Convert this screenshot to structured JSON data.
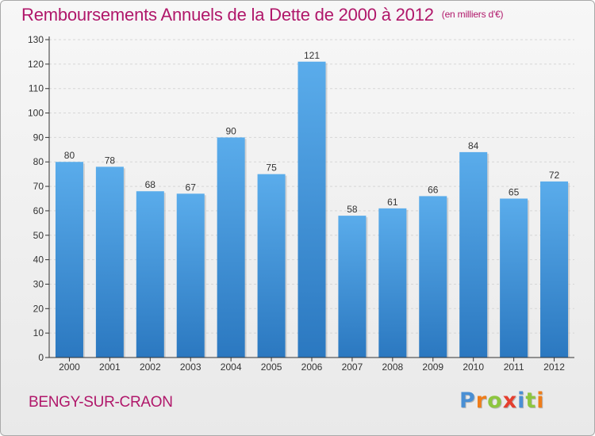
{
  "title": "Remboursements Annuels de la Dette de 2000 à 2012",
  "title_unit": "(en milliers d'€)",
  "commune": "BENGY-SUR-CRAON",
  "logo": {
    "text": "Proxiti",
    "colors": [
      "#4a8fd4",
      "#ef7d1a",
      "#8dc63f",
      "#e53f2f",
      "#4a8fd4",
      "#8dc63f",
      "#ef7d1a"
    ]
  },
  "colors": {
    "title": "#b0176a",
    "bar_top": "#5aaceb",
    "bar_bottom": "#2b78c0",
    "grid": "#d6d6d6",
    "axis": "#333333"
  },
  "chart_data": {
    "type": "bar",
    "categories": [
      "2000",
      "2001",
      "2002",
      "2003",
      "2004",
      "2005",
      "2006",
      "2007",
      "2008",
      "2009",
      "2010",
      "2011",
      "2012"
    ],
    "values": [
      80,
      78,
      68,
      67,
      90,
      75,
      121,
      58,
      61,
      66,
      84,
      65,
      72
    ],
    "ylim": [
      0,
      130
    ],
    "yticks": [
      0,
      10,
      20,
      30,
      40,
      50,
      60,
      70,
      80,
      90,
      100,
      110,
      120,
      130
    ],
    "grid": true,
    "xlabel": "",
    "ylabel": ""
  }
}
